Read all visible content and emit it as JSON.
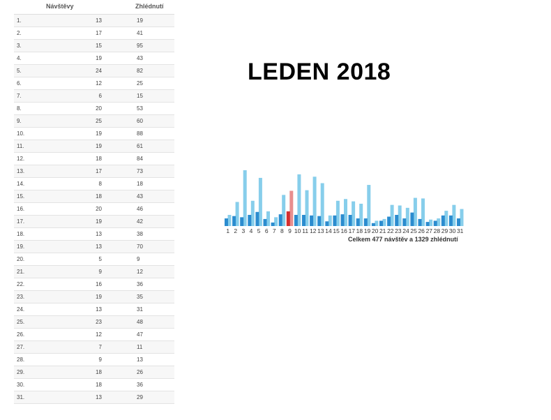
{
  "title": "LEDEN 2018",
  "table": {
    "headers": {
      "visits": "Návštěvy",
      "views": "Zhlédnutí"
    },
    "rows": [
      {
        "day": "1.",
        "visits": "13",
        "views": "19"
      },
      {
        "day": "2.",
        "visits": "17",
        "views": "41"
      },
      {
        "day": "3.",
        "visits": "15",
        "views": "95"
      },
      {
        "day": "4.",
        "visits": "19",
        "views": "43"
      },
      {
        "day": "5.",
        "visits": "24",
        "views": "82"
      },
      {
        "day": "6.",
        "visits": "12",
        "views": "25"
      },
      {
        "day": "7.",
        "visits": "6",
        "views": "15"
      },
      {
        "day": "8.",
        "visits": "20",
        "views": "53"
      },
      {
        "day": "9.",
        "visits": "25",
        "views": "60"
      },
      {
        "day": "10.",
        "visits": "19",
        "views": "88"
      },
      {
        "day": "11.",
        "visits": "19",
        "views": "61"
      },
      {
        "day": "12.",
        "visits": "18",
        "views": "84"
      },
      {
        "day": "13.",
        "visits": "17",
        "views": "73"
      },
      {
        "day": "14.",
        "visits": "8",
        "views": "18"
      },
      {
        "day": "15.",
        "visits": "18",
        "views": "43"
      },
      {
        "day": "16.",
        "visits": "20",
        "views": "46"
      },
      {
        "day": "17.",
        "visits": "19",
        "views": "42"
      },
      {
        "day": "18.",
        "visits": "13",
        "views": "38"
      },
      {
        "day": "19.",
        "visits": "13",
        "views": "70"
      },
      {
        "day": "20.",
        "visits": "5",
        "views": "9"
      },
      {
        "day": "21.",
        "visits": "9",
        "views": "12"
      },
      {
        "day": "22.",
        "visits": "16",
        "views": "36"
      },
      {
        "day": "23.",
        "visits": "19",
        "views": "35"
      },
      {
        "day": "24.",
        "visits": "13",
        "views": "31"
      },
      {
        "day": "25.",
        "visits": "23",
        "views": "48"
      },
      {
        "day": "26.",
        "visits": "12",
        "views": "47"
      },
      {
        "day": "27.",
        "visits": "7",
        "views": "11"
      },
      {
        "day": "28.",
        "visits": "9",
        "views": "13"
      },
      {
        "day": "29.",
        "visits": "18",
        "views": "26"
      },
      {
        "day": "30.",
        "visits": "18",
        "views": "36"
      },
      {
        "day": "31.",
        "visits": "13",
        "views": "29"
      }
    ]
  },
  "chart_data": {
    "type": "bar",
    "categories": [
      "1",
      "2",
      "3",
      "4",
      "5",
      "6",
      "7",
      "8",
      "9",
      "10",
      "11",
      "12",
      "13",
      "14",
      "15",
      "16",
      "17",
      "18",
      "19",
      "20",
      "21",
      "22",
      "23",
      "24",
      "25",
      "26",
      "27",
      "28",
      "29",
      "30",
      "31"
    ],
    "series": [
      {
        "values": [
          19,
          41,
          95,
          43,
          82,
          25,
          15,
          53,
          60,
          88,
          61,
          84,
          73,
          18,
          43,
          46,
          42,
          38,
          70,
          9,
          12,
          36,
          35,
          31,
          48,
          47,
          11,
          13,
          26,
          36,
          29
        ],
        "color": "#87ceeb",
        "highlight_color": "#e88e8e"
      },
      {
        "values": [
          13,
          17,
          15,
          19,
          24,
          12,
          6,
          20,
          25,
          19,
          19,
          18,
          17,
          8,
          18,
          20,
          19,
          13,
          13,
          5,
          9,
          16,
          19,
          13,
          23,
          12,
          7,
          9,
          18,
          18,
          13
        ],
        "color": "#2b8ccf",
        "highlight_color": "#d32f2f"
      }
    ],
    "highlight_index": 8,
    "caption": "Celkem 477 návštěv a 1329 zhlédnutí"
  }
}
